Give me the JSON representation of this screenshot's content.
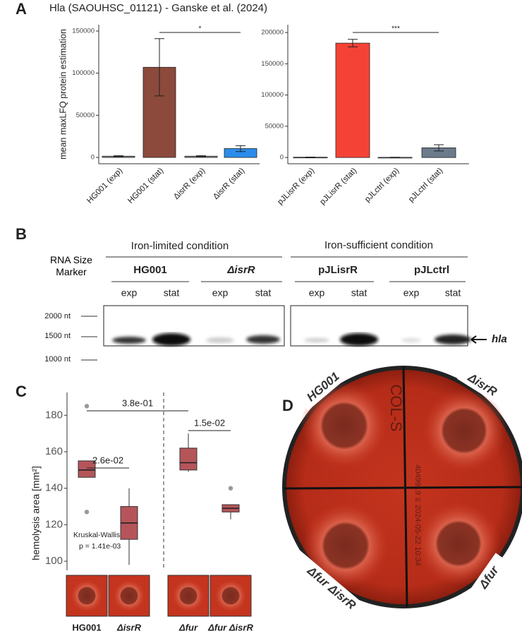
{
  "figure": {
    "title": "Hla (SAOUHSC_01121) - Ganske et al. (2024)",
    "panel_labels": [
      "A",
      "B",
      "C",
      "D"
    ]
  },
  "chart_data": [
    {
      "type": "bar",
      "ylabel": "mean maxLFQ protein estimation",
      "categories": [
        "HG001 (exp)",
        "HG001 (stat)",
        "ΔisrR (exp)",
        "ΔisrR (stat)"
      ],
      "values": [
        1500,
        107000,
        1500,
        10500
      ],
      "errors": [
        500,
        34000,
        500,
        3500
      ],
      "colors": [
        "#8a8a8a",
        "#8b4a3c",
        "#8a8a8a",
        "#2b8ceb"
      ],
      "ylim": [
        -7500,
        157500
      ],
      "yticks": [
        0,
        50000,
        100000,
        150000
      ],
      "annotations": [
        "*"
      ]
    },
    {
      "type": "bar",
      "categories": [
        "pJLisrR (exp)",
        "pJLisrR (stat)",
        "pJLctrl (exp)",
        "pJLctrl (stat)"
      ],
      "values": [
        500,
        183000,
        300,
        15500
      ],
      "errors": [
        300,
        6000,
        200,
        5000
      ],
      "colors": [
        "#8a8a8a",
        "#f44336",
        "#8a8a8a",
        "#6b7b8c"
      ],
      "ylim": [
        -10000,
        212500
      ],
      "yticks": [
        0,
        50000,
        100000,
        150000,
        200000
      ],
      "annotations": [
        "***"
      ]
    },
    {
      "type": "box",
      "ylabel": "hemolysis area [mm²]",
      "categories": [
        "HG001",
        "ΔisrR",
        "Δfur",
        "Δfur ΔisrR"
      ],
      "whisker_low": [
        146,
        98,
        149,
        123
      ],
      "q1": [
        146,
        112,
        150,
        127
      ],
      "median": [
        150,
        121,
        154,
        129
      ],
      "q3": [
        155,
        130,
        162,
        131
      ],
      "whisker_high": [
        155,
        140,
        170,
        131
      ],
      "outliers": [
        [
          185,
          127
        ],
        [],
        [],
        [
          140
        ]
      ],
      "color": "#b5555a",
      "ylim": [
        95,
        192.5
      ],
      "yticks": [
        100,
        120,
        140,
        160,
        180
      ],
      "annotations": [
        "3.8e-01",
        "2.6e-02",
        "1.5e-02",
        "Kruskal-Wallis",
        "p = 1.41e-03"
      ]
    }
  ],
  "blot": {
    "conditions": [
      "Iron-limited condition",
      "Iron-sufficient condition"
    ],
    "marker_title": "RNA Size Marker",
    "strains": [
      "HG001",
      "ΔisrR",
      "pJLisrR",
      "pJLctrl"
    ],
    "phases": [
      "exp",
      "stat",
      "exp",
      "stat",
      "exp",
      "stat",
      "exp",
      "stat"
    ],
    "markers": [
      "2000 nt",
      "1500 nt",
      "1000 nt"
    ],
    "target": "hla"
  },
  "plate": {
    "labels": [
      "HG001",
      "ΔisrR",
      "Δfur ΔisrR",
      "Δfur"
    ],
    "writing": [
      "COL-S",
      "4049919 ⧖ 2024-05-22 10:34"
    ]
  }
}
